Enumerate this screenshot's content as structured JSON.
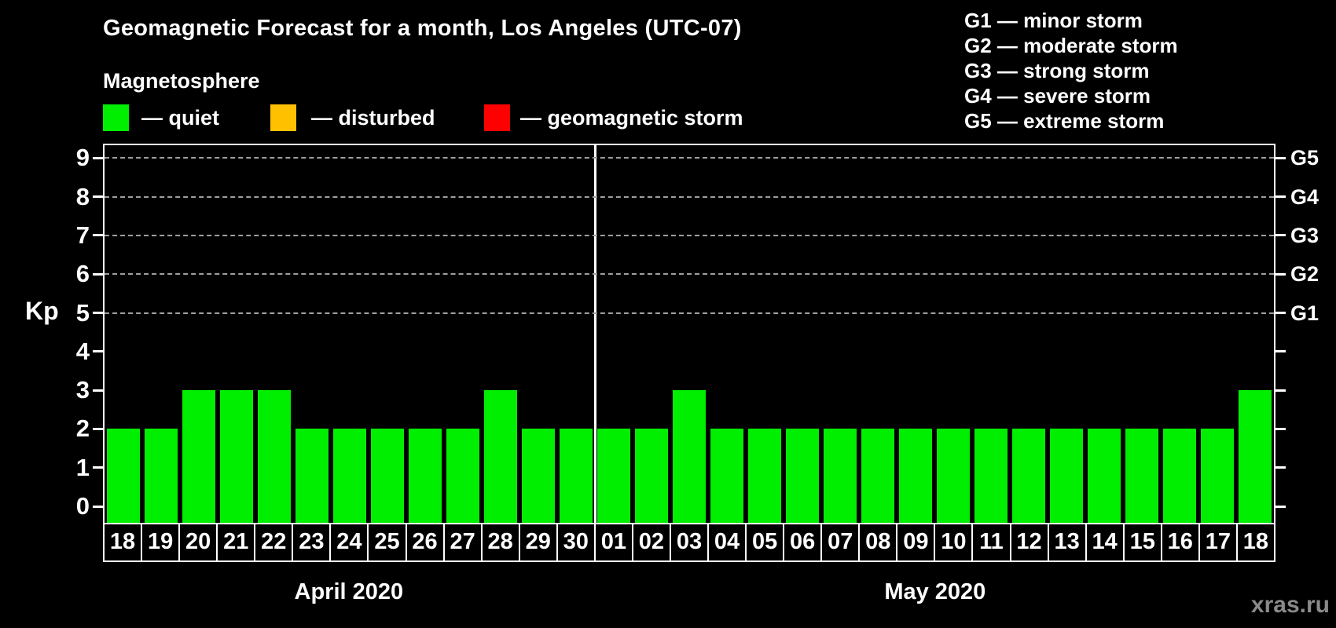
{
  "title": "Geomagnetic Forecast for a month, Los Angeles (UTC-07)",
  "subtitle": "Magnetosphere",
  "legend": [
    {
      "name": "quiet",
      "label": "— quiet",
      "color": "#00EE00"
    },
    {
      "name": "disturbed",
      "label": "— disturbed",
      "color": "#FFC000"
    },
    {
      "name": "storm",
      "label": "— geomagnetic storm",
      "color": "#FF0000"
    }
  ],
  "g_legend": [
    "G1 — minor storm",
    "G2 — moderate storm",
    "G3 — strong storm",
    "G4 — severe storm",
    "G5 — extreme storm"
  ],
  "watermark": "xras.ru",
  "chart_data": {
    "type": "bar",
    "title": "Geomagnetic Forecast for a month, Los Angeles (UTC-07)",
    "ylabel": "Kp",
    "ylim": [
      0,
      9
    ],
    "y_ticks": [
      0,
      1,
      2,
      3,
      4,
      5,
      6,
      7,
      8,
      9
    ],
    "gridlines_at": [
      5,
      6,
      7,
      8,
      9
    ],
    "right_axis_labels": [
      {
        "kp": 5,
        "label": "G1"
      },
      {
        "kp": 6,
        "label": "G2"
      },
      {
        "kp": 7,
        "label": "G3"
      },
      {
        "kp": 8,
        "label": "G4"
      },
      {
        "kp": 9,
        "label": "G5"
      }
    ],
    "categories": [
      "18",
      "19",
      "20",
      "21",
      "22",
      "23",
      "24",
      "25",
      "26",
      "27",
      "28",
      "29",
      "30",
      "01",
      "02",
      "03",
      "04",
      "05",
      "06",
      "07",
      "08",
      "09",
      "10",
      "11",
      "12",
      "13",
      "14",
      "15",
      "16",
      "17",
      "18"
    ],
    "values": [
      2,
      2,
      3,
      3,
      3,
      2,
      2,
      2,
      2,
      2,
      3,
      2,
      2,
      2,
      2,
      3,
      2,
      2,
      2,
      2,
      2,
      2,
      2,
      2,
      2,
      2,
      2,
      2,
      2,
      2,
      3
    ],
    "bar_state": "quiet",
    "bar_color": "#00EE00",
    "grid_color": "#9f9f9f",
    "months": [
      {
        "label": "April 2020",
        "days": 13
      },
      {
        "label": "May 2020",
        "days": 18
      }
    ]
  }
}
